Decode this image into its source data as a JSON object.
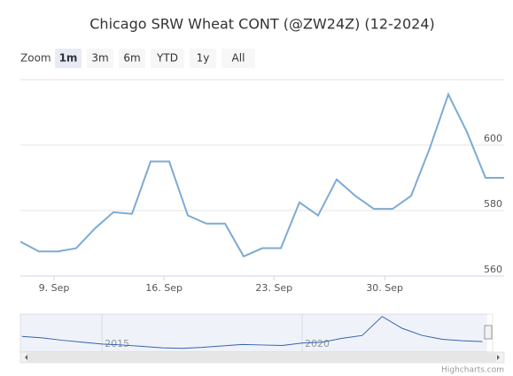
{
  "chart_data": {
    "type": "line",
    "title": "Chicago SRW Wheat CONT (@ZW24Z) (12-2024)",
    "zoom_label": "Zoom",
    "zoom_buttons": [
      "1m",
      "3m",
      "6m",
      "YTD",
      "1y",
      "All"
    ],
    "selected_button": "1m",
    "credit": "Highcharts.com",
    "x": [
      0,
      1,
      2,
      3,
      4,
      5,
      6,
      7,
      8,
      9,
      10,
      11,
      12,
      13,
      14,
      15,
      16,
      17,
      18,
      19,
      20,
      21,
      22,
      23,
      24,
      25,
      26
    ],
    "series": [
      {
        "name": "@ZW24Z",
        "color": "#7cabd3",
        "values": [
          570.5,
          567.5,
          567.5,
          568.5,
          574.5,
          579.5,
          579,
          595,
          595,
          578.5,
          576,
          576,
          566,
          568.5,
          568.5,
          582.5,
          578.5,
          589.5,
          584.5,
          580.5,
          580.5,
          584.5,
          599,
          615.5,
          604,
          590,
          590
        ]
      }
    ],
    "xlim": [
      0,
      26
    ],
    "xticks": [
      {
        "value": 1.81,
        "label": "9. Sep"
      },
      {
        "value": 7.72,
        "label": "16. Sep"
      },
      {
        "value": 13.63,
        "label": "23. Sep"
      },
      {
        "value": 19.58,
        "label": "30. Sep"
      }
    ],
    "ylim": [
      560,
      620
    ],
    "yticks": [
      560,
      580,
      600
    ],
    "grid": true,
    "navigator": {
      "x": [
        2013,
        2013.5,
        2014,
        2014.5,
        2015,
        2015.5,
        2016,
        2016.5,
        2017,
        2017.5,
        2018,
        2018.5,
        2019,
        2019.5,
        2020,
        2020.5,
        2021,
        2021.5,
        2022,
        2022.5,
        2023,
        2023.5,
        2024,
        2024.5
      ],
      "values": [
        680,
        650,
        600,
        560,
        520,
        500,
        470,
        440,
        430,
        450,
        480,
        510,
        500,
        490,
        540,
        560,
        640,
        700,
        1100,
        850,
        700,
        620,
        590,
        570
      ],
      "xlim": [
        2012.96,
        2024.76
      ],
      "xticks": [
        2015,
        2020
      ],
      "ylim": [
        350,
        1150
      ]
    }
  }
}
